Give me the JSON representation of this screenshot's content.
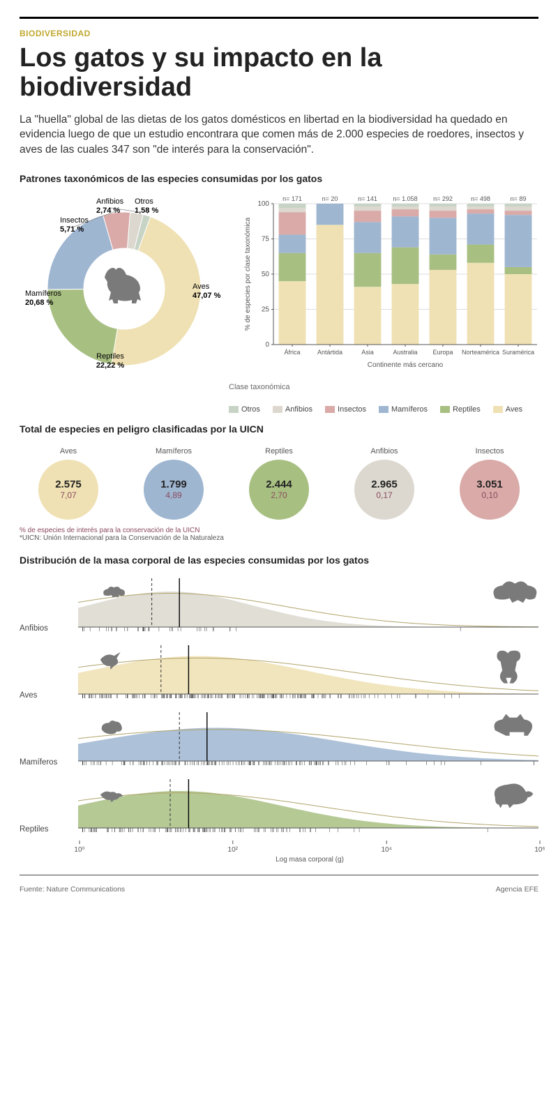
{
  "colors": {
    "kicker": "#bfa82f",
    "aves": "#efe1b3",
    "reptiles": "#a8bf82",
    "mamiferos": "#9fb6d1",
    "insectos": "#d9aaa8",
    "anfibios": "#dcd8cf",
    "otros": "#c7d4c5",
    "pct_text": "#8a4a5e",
    "grid": "#d0d0d0",
    "text": "#222222",
    "bg": "#ffffff"
  },
  "header": {
    "kicker": "BIODIVERSIDAD",
    "headline": "Los gatos y su impacto en la biodiversidad",
    "dek": "La \"huella\" global de las dietas de los gatos domésticos en libertad en la biodiversidad ha quedado en evidencia luego de que un estudio encontrara que comen más de 2.000 especies de roedores, insectos y aves de las cuales 347 son \"de interés para la conservación\"."
  },
  "section1": {
    "title": "Patrones taxonómicos de las especies consumidas por los gatos",
    "donut": {
      "type": "donut",
      "inner_radius": 58,
      "outer_radius": 110,
      "slices": [
        {
          "label": "Aves",
          "value": 47.07,
          "color": "#efe1b3",
          "label_text": "Aves",
          "pct_text": "47,07 %",
          "bold": true
        },
        {
          "label": "Reptiles",
          "value": 22.22,
          "color": "#a8bf82",
          "label_text": "Reptiles",
          "pct_text": "22,22 %",
          "bold": true
        },
        {
          "label": "Mamíferos",
          "value": 20.68,
          "color": "#9fb6d1",
          "label_text": "Mamíferos",
          "pct_text": "20,68 %",
          "bold": true
        },
        {
          "label": "Insectos",
          "value": 5.71,
          "color": "#d9aaa8",
          "label_text": "Insectos",
          "pct_text": "5,71 %",
          "bold": true
        },
        {
          "label": "Anfibios",
          "value": 2.74,
          "color": "#dcd8cf",
          "label_text": "Anfibios",
          "pct_text": "2,74 %",
          "bold": false
        },
        {
          "label": "Otros",
          "value": 1.58,
          "color": "#c7d4c5",
          "label_text": "Otros",
          "pct_text": "1,58 %",
          "bold": false
        }
      ],
      "center_icon": "cat"
    },
    "stacked": {
      "type": "stacked-bar-100",
      "categories": [
        "África",
        "Antártida",
        "Asia",
        "Australia",
        "Europa",
        "Norteamérica",
        "Suramérica"
      ],
      "n_labels": [
        "n= 171",
        "n= 20",
        "n= 141",
        "n= 1.058",
        "n= 292",
        "n= 498",
        "n= 89"
      ],
      "ylabel": "% de especies por clase taxonómica",
      "xlabel": "Continente más cercano",
      "ylim": [
        0,
        100
      ],
      "ytick_step": 25,
      "series_order": [
        "Aves",
        "Reptiles",
        "Mamíferos",
        "Insectos",
        "Anfibios",
        "Otros"
      ],
      "series_colors": {
        "Aves": "#efe1b3",
        "Reptiles": "#a8bf82",
        "Mamíferos": "#9fb6d1",
        "Insectos": "#d9aaa8",
        "Anfibios": "#dcd8cf",
        "Otros": "#c7d4c5"
      },
      "data": [
        {
          "Aves": 45,
          "Reptiles": 20,
          "Mamíferos": 13,
          "Insectos": 16,
          "Anfibios": 3,
          "Otros": 3
        },
        {
          "Aves": 85,
          "Reptiles": 0,
          "Mamíferos": 15,
          "Insectos": 0,
          "Anfibios": 0,
          "Otros": 0
        },
        {
          "Aves": 41,
          "Reptiles": 24,
          "Mamíferos": 22,
          "Insectos": 8,
          "Anfibios": 3,
          "Otros": 2
        },
        {
          "Aves": 43,
          "Reptiles": 26,
          "Mamíferos": 22,
          "Insectos": 5,
          "Anfibios": 2,
          "Otros": 2
        },
        {
          "Aves": 53,
          "Reptiles": 11,
          "Mamíferos": 26,
          "Insectos": 5,
          "Anfibios": 3,
          "Otros": 2
        },
        {
          "Aves": 58,
          "Reptiles": 13,
          "Mamíferos": 22,
          "Insectos": 3,
          "Anfibios": 2,
          "Otros": 2
        },
        {
          "Aves": 50,
          "Reptiles": 5,
          "Mamíferos": 37,
          "Insectos": 3,
          "Anfibios": 3,
          "Otros": 2
        }
      ],
      "bar_width": 0.72
    },
    "legend": {
      "title": "Clase taxonómica",
      "items": [
        {
          "label": "Otros",
          "color": "#c7d4c5"
        },
        {
          "label": "Anfibios",
          "color": "#dcd8cf"
        },
        {
          "label": "Insectos",
          "color": "#d9aaa8"
        },
        {
          "label": "Mamíferos",
          "color": "#9fb6d1"
        },
        {
          "label": "Reptiles",
          "color": "#a8bf82"
        },
        {
          "label": "Aves",
          "color": "#efe1b3"
        }
      ]
    }
  },
  "section2": {
    "title": "Total de especies en peligro clasificadas por la UICN",
    "items": [
      {
        "label": "Aves",
        "total": "2.575",
        "pct": "7,07",
        "color": "#efe1b3"
      },
      {
        "label": "Mamíferos",
        "total": "1.799",
        "pct": "4,89",
        "color": "#9fb6d1"
      },
      {
        "label": "Reptiles",
        "total": "2.444",
        "pct": "2,70",
        "color": "#a8bf82"
      },
      {
        "label": "Anfibios",
        "total": "2.965",
        "pct": "0,17",
        "color": "#dcd8cf"
      },
      {
        "label": "Insectos",
        "total": "3.051",
        "pct": "0,10",
        "color": "#d9aaa8"
      }
    ],
    "note1": "% de especies de interés para la conservación de la UICN",
    "note2": "*UICN: Unión Internacional para la Conservación de la Naturaleza"
  },
  "section3": {
    "title": "Distribución de la masa corporal de las especies consumidas por los gatos",
    "xlabel": "Log masa corporal (g)",
    "xticks": [
      {
        "pos": 0,
        "label": "10⁰"
      },
      {
        "pos": 0.333,
        "label": "10²"
      },
      {
        "pos": 0.667,
        "label": "10⁴"
      },
      {
        "pos": 1.0,
        "label": "10⁶"
      }
    ],
    "rows": [
      {
        "label": "Anfibios",
        "fill": "#dcd8cf",
        "center": 0.2,
        "spread": 0.18,
        "max_h": 0.75,
        "dashed_x": 0.16,
        "solid_x": 0.22,
        "ticks": 42,
        "left_icon": "frog-small",
        "right_icon": "frog-big"
      },
      {
        "label": "Aves",
        "fill": "#efe1b3",
        "center": 0.26,
        "spread": 0.24,
        "max_h": 0.8,
        "dashed_x": 0.18,
        "solid_x": 0.24,
        "ticks": 260,
        "left_icon": "hummingbird",
        "right_icon": "emu"
      },
      {
        "label": "Mamíferos",
        "fill": "#9fb6d1",
        "center": 0.3,
        "spread": 0.26,
        "max_h": 0.7,
        "dashed_x": 0.22,
        "solid_x": 0.28,
        "ticks": 180,
        "left_icon": "mouse",
        "right_icon": "cow"
      },
      {
        "label": "Reptiles",
        "fill": "#a8bf82",
        "center": 0.22,
        "spread": 0.22,
        "max_h": 0.78,
        "dashed_x": 0.2,
        "solid_x": 0.24,
        "ticks": 140,
        "left_icon": "lizard",
        "right_icon": "turtle"
      }
    ]
  },
  "footer": {
    "left": "Fuente: Nature Communications",
    "right": "Agencia EFE"
  }
}
